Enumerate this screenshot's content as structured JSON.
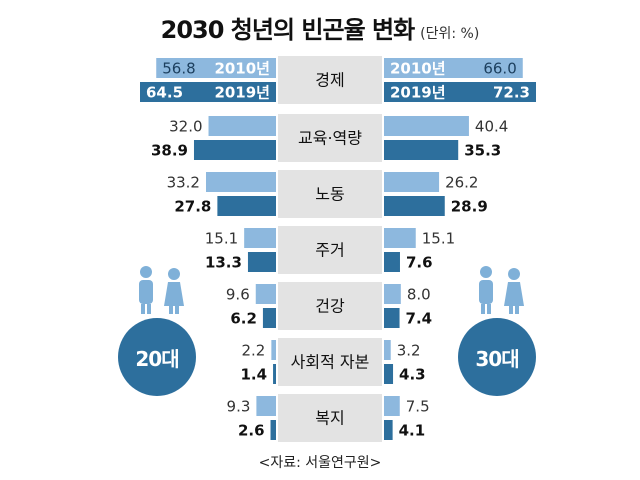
{
  "title": "2030 청년의 빈곤율 변화",
  "unit": "(단위: %)",
  "source": "<자료: 서울연구원>",
  "groups": {
    "left": "20대",
    "right": "30대"
  },
  "colors": {
    "light": "#8db8de",
    "dark": "#2d6f9d",
    "label_bg": "#e3e3e3",
    "badge": "#2d6f9d",
    "people": "#7fb0d8"
  },
  "chart_data": {
    "type": "bar",
    "layout": "butterfly",
    "title": "2030 청년의 빈곤율 변화",
    "unit": "(단위: %)",
    "categories": [
      "경제",
      "교육·역량",
      "노동",
      "주거",
      "건강",
      "사회적 자본",
      "복지"
    ],
    "series": [
      {
        "name": "2010년",
        "group": "20대",
        "values": [
          56.8,
          32.0,
          33.2,
          15.1,
          9.6,
          2.2,
          9.3
        ]
      },
      {
        "name": "2019년",
        "group": "20대",
        "values": [
          64.5,
          38.9,
          27.8,
          13.3,
          6.2,
          1.4,
          2.6
        ]
      },
      {
        "name": "2010년",
        "group": "30대",
        "values": [
          66.0,
          40.4,
          26.2,
          15.1,
          8.0,
          3.2,
          7.5
        ]
      },
      {
        "name": "2019년",
        "group": "30대",
        "values": [
          72.3,
          35.3,
          28.9,
          7.6,
          7.4,
          4.3,
          4.1
        ]
      }
    ],
    "legend": "inline in first row (2010년 / 2019년)"
  }
}
